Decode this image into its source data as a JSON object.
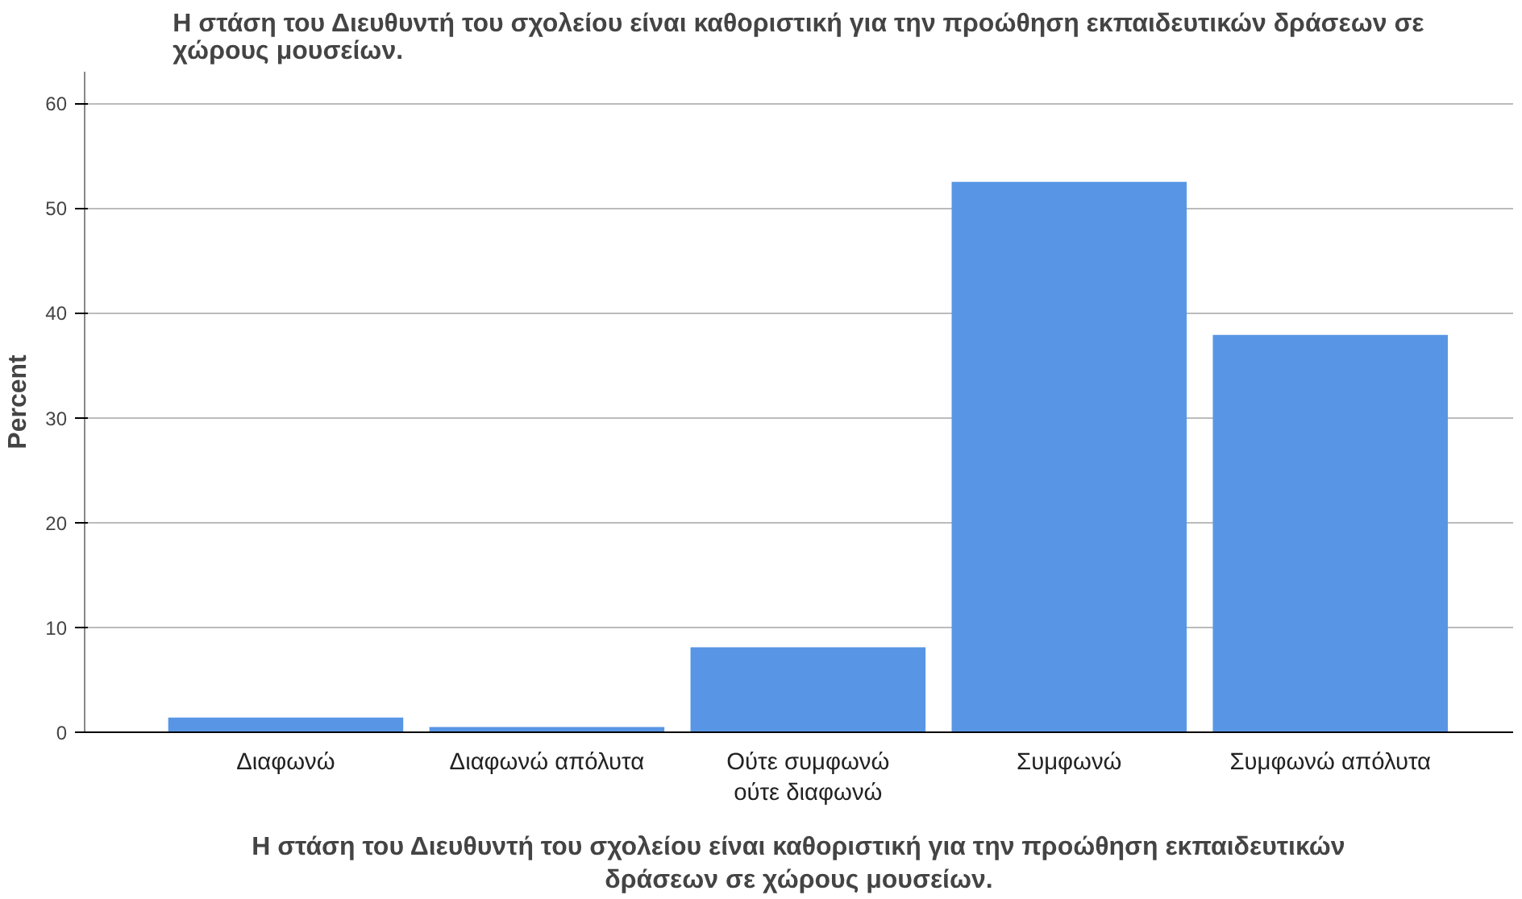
{
  "chart_data": {
    "type": "bar",
    "title": "Η στάση του Διευθυντή του σχολείου είναι καθοριστική για την προώθηση εκπαιδευτικών δράσεων σε χώρους μουσείων.",
    "xlabel": "Η στάση του Διευθυντή του σχολείου είναι καθοριστική για την προώθηση εκπαιδευτικών δράσεων σε χώρους μουσείων.",
    "ylabel": "Percent",
    "categories": [
      "Διαφωνώ",
      "Διαφωνώ απόλυτα",
      "Ούτε συμφωνώ ούτε διαφωνώ",
      "Συμφωνώ",
      "Συμφωνώ απόλυτα"
    ],
    "values": [
      1.4,
      0.5,
      8.1,
      52.5,
      37.9
    ],
    "color": "#5896e5",
    "ylim": [
      0,
      63
    ],
    "yticks": [
      0,
      10,
      20,
      30,
      40,
      50,
      60
    ],
    "grid": "y"
  }
}
